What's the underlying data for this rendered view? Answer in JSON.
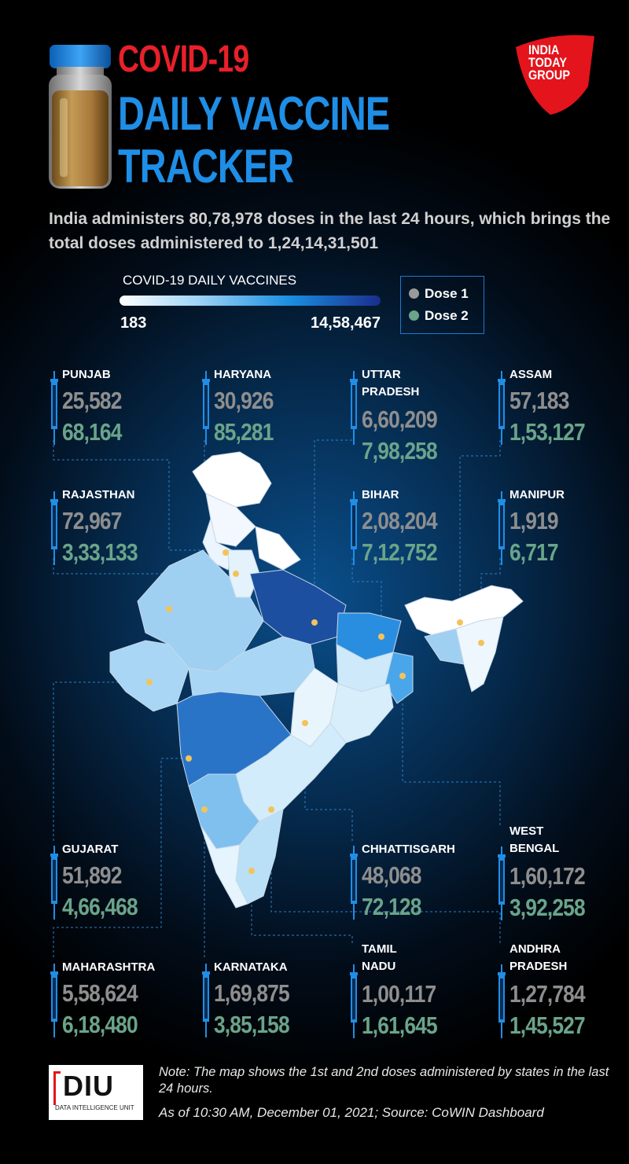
{
  "header": {
    "title_line1": "COVID-19",
    "title_line2": "DAILY VACCINE",
    "title_line3": "TRACKER",
    "logo_text": [
      "INDIA",
      "TODAY",
      "GROUP"
    ]
  },
  "summary": "India administers 80,78,978 doses in the last 24 hours, which brings the total doses administered to 1,24,14,31,501",
  "legend": {
    "title": "COVID-19 DAILY VACCINES",
    "min": "183",
    "max": "14,58,467",
    "dose1_label": "Dose 1",
    "dose2_label": "Dose 2",
    "dose1_color": "#9a9a9a",
    "dose2_color": "#6aa48a",
    "scale_colors": [
      "#ffffff",
      "#9fd4f6",
      "#1a8fe0",
      "#1a2d8c"
    ]
  },
  "states": [
    {
      "name": "PUNJAB",
      "dose1": "25,582",
      "dose2": "68,164"
    },
    {
      "name": "HARYANA",
      "dose1": "30,926",
      "dose2": "85,281"
    },
    {
      "name": "UTTAR PRADESH",
      "name_line1": "UTTAR",
      "name_line2": "PRADESH",
      "dose1": "6,60,209",
      "dose2": "7,98,258"
    },
    {
      "name": "ASSAM",
      "dose1": "57,183",
      "dose2": "1,53,127"
    },
    {
      "name": "RAJASTHAN",
      "dose1": "72,967",
      "dose2": "3,33,133"
    },
    {
      "name": "BIHAR",
      "dose1": "2,08,204",
      "dose2": "7,12,752"
    },
    {
      "name": "MANIPUR",
      "dose1": "1,919",
      "dose2": "6,717"
    },
    {
      "name": "GUJARAT",
      "dose1": "51,892",
      "dose2": "4,66,468"
    },
    {
      "name": "CHHATTISGARH",
      "dose1": "48,068",
      "dose2": "72,128"
    },
    {
      "name": "WEST BENGAL",
      "name_line1": "WEST",
      "name_line2": "BENGAL",
      "dose1": "1,60,172",
      "dose2": "3,92,258"
    },
    {
      "name": "MAHARASHTRA",
      "dose1": "5,58,624",
      "dose2": "6,18,480"
    },
    {
      "name": "KARNATAKA",
      "dose1": "1,69,875",
      "dose2": "3,85,158"
    },
    {
      "name": "TAMIL NADU",
      "name_line1": "TAMIL",
      "name_line2": "NADU",
      "dose1": "1,00,117",
      "dose2": "1,61,645"
    },
    {
      "name": "ANDHRA PRADESH",
      "name_line1": "ANDHRA",
      "name_line2": "PRADESH",
      "dose1": "1,27,784",
      "dose2": "1,45,527"
    }
  ],
  "footer": {
    "note": "Note: The map shows the 1st and 2nd doses administered by states in the last 24 hours.",
    "as_of": "As of 10:30 AM, December 01, 2021; Source: CoWIN Dashboard",
    "diu_logo": "DIU",
    "diu_subtext": "DATA INTELLIGENCE UNIT"
  }
}
